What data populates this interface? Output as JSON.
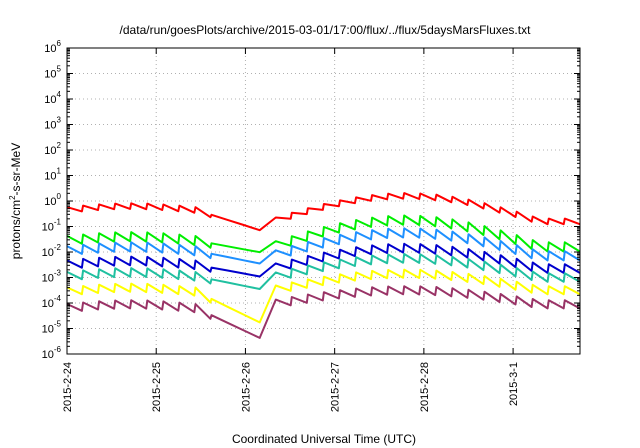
{
  "chart_data": {
    "type": "line",
    "title": "/data/run/goesPlots/archive/2015-03-01/17:00/flux/../flux/5daysMarsFluxes.txt",
    "xlabel": "Coordinated Universal Time (UTC)",
    "ylabel_base": "protons/cm",
    "ylabel_sup": "2",
    "ylabel_rest": "-s-sr-MeV",
    "y_scale": "log",
    "ylim_exp": [
      -6,
      6
    ],
    "xlim_days": [
      0,
      5.75
    ],
    "grid": true,
    "x_ticks": [
      {
        "day": 0,
        "label": "2015-2-24"
      },
      {
        "day": 1,
        "label": "2015-2-25"
      },
      {
        "day": 2,
        "label": "2015-2-26"
      },
      {
        "day": 3,
        "label": "2015-2-27"
      },
      {
        "day": 4,
        "label": "2015-2-28"
      },
      {
        "day": 5,
        "label": "2015-3-1"
      }
    ],
    "series": [
      {
        "color": "#ff0000",
        "k0": -0.35,
        "kmin": -1.3,
        "k1": -0.8,
        "peak": 0.2,
        "amp": 0.22
      },
      {
        "color": "#00ee00",
        "k0": -1.55,
        "kmin": -2.1,
        "k1": -1.8,
        "peak": -0.75,
        "amp": 0.36
      },
      {
        "color": "#1e90ff",
        "k0": -1.95,
        "kmin": -2.55,
        "k1": -2.15,
        "peak": -1.25,
        "amp": 0.36
      },
      {
        "color": "#0000cd",
        "k0": -2.5,
        "kmin": -3.05,
        "k1": -2.65,
        "peak": -1.85,
        "amp": 0.34
      },
      {
        "color": "#20c0a0",
        "k0": -2.95,
        "kmin": -3.55,
        "k1": -3.0,
        "peak": -2.25,
        "amp": 0.34
      },
      {
        "color": "#ffff00",
        "k0": -3.55,
        "kmin": -5.0,
        "k1": -3.5,
        "peak": -2.85,
        "amp": 0.32
      },
      {
        "color": "#993366",
        "k0": -4.2,
        "kmin": -5.6,
        "k1": -4.05,
        "peak": -3.5,
        "amp": 0.32
      }
    ]
  }
}
